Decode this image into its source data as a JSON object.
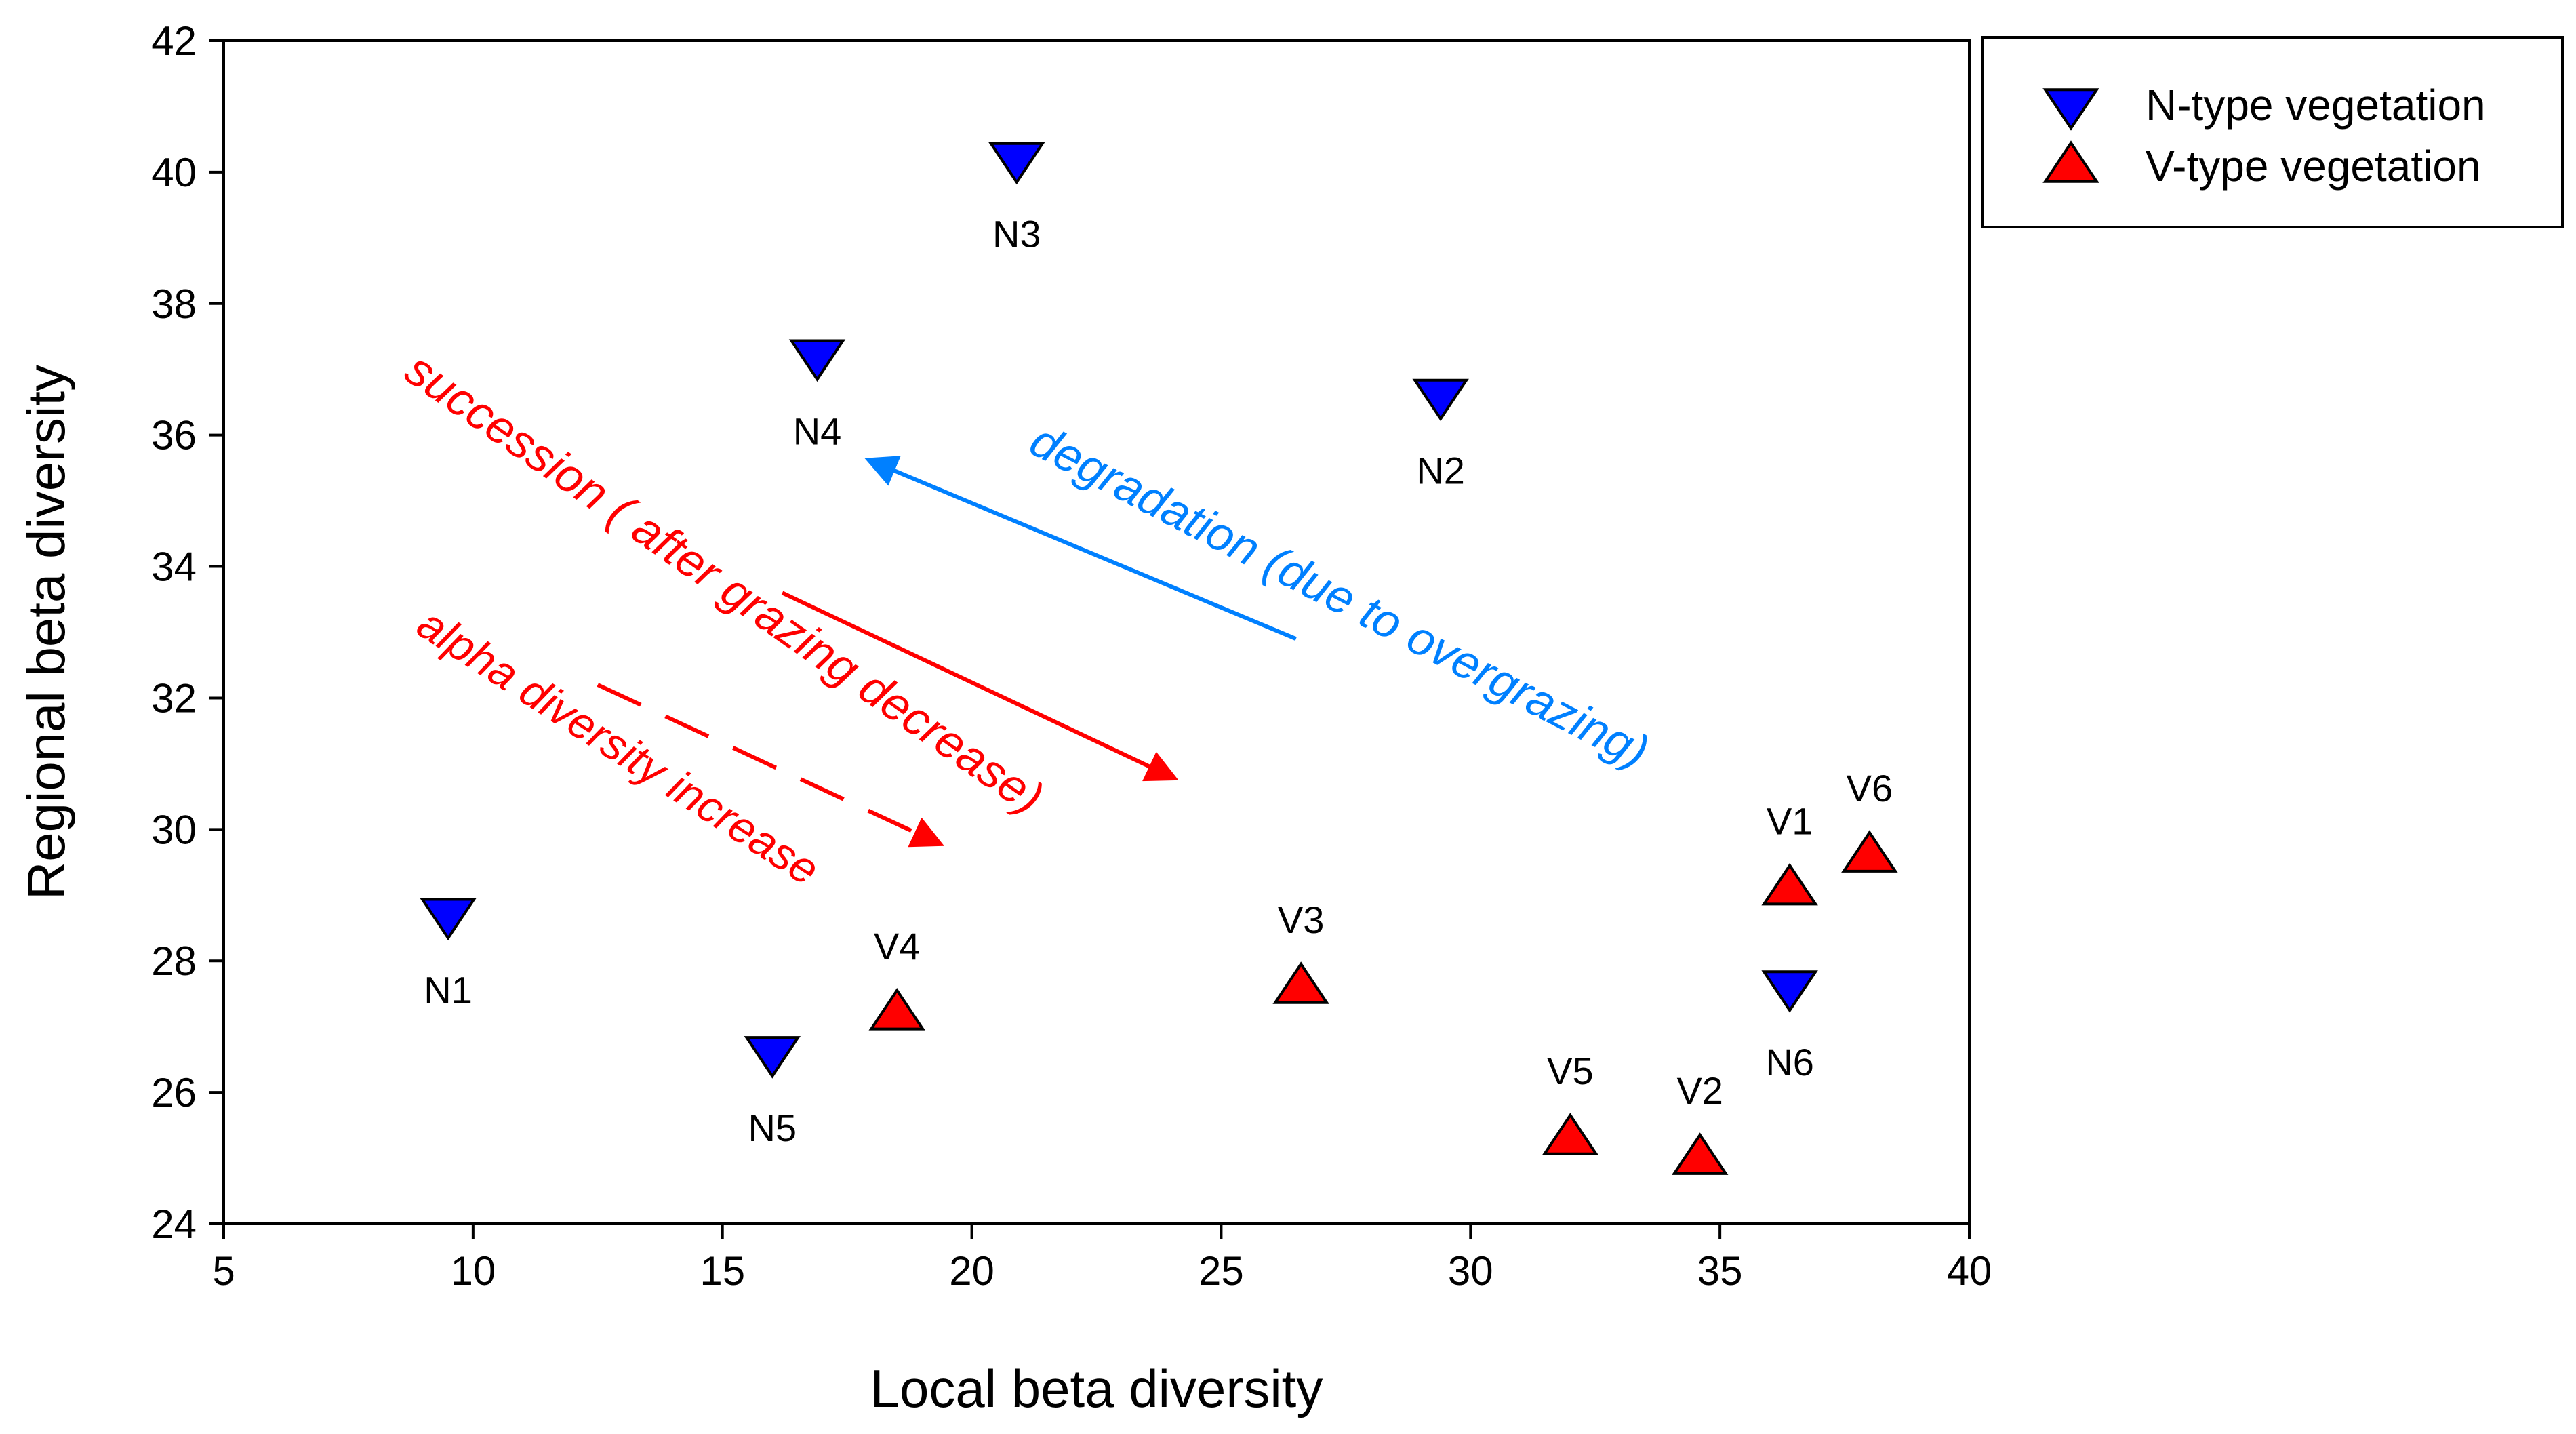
{
  "chart_data": {
    "type": "scatter",
    "xlabel": "Local beta diversity",
    "ylabel": "Regional beta diversity",
    "xlim": [
      5,
      40
    ],
    "ylim": [
      24,
      42
    ],
    "xticks": [
      "5",
      "10",
      "15",
      "20",
      "25",
      "30",
      "35",
      "40"
    ],
    "yticks": [
      "24",
      "26",
      "28",
      "30",
      "32",
      "34",
      "36",
      "38",
      "40",
      "42"
    ],
    "grid": false,
    "legend_position": "top-right outside",
    "series": [
      {
        "name": "N-type vegetation",
        "marker": "triangle-down",
        "color": "#0000ff",
        "points": [
          {
            "label": "N1",
            "x": 9.5,
            "y": 28.7
          },
          {
            "label": "N2",
            "x": 29.4,
            "y": 36.6
          },
          {
            "label": "N3",
            "x": 20.9,
            "y": 40.2
          },
          {
            "label": "N4",
            "x": 16.9,
            "y": 37.2
          },
          {
            "label": "N5",
            "x": 16.0,
            "y": 26.6
          },
          {
            "label": "N6",
            "x": 36.4,
            "y": 27.6
          }
        ]
      },
      {
        "name": "V-type vegetation",
        "marker": "triangle-up",
        "color": "#ff0000",
        "points": [
          {
            "label": "V1",
            "x": 36.4,
            "y": 29.1
          },
          {
            "label": "V2",
            "x": 34.6,
            "y": 25.0
          },
          {
            "label": "V3",
            "x": 26.6,
            "y": 27.6
          },
          {
            "label": "V4",
            "x": 18.5,
            "y": 27.2
          },
          {
            "label": "V5",
            "x": 32.0,
            "y": 25.3
          },
          {
            "label": "V6",
            "x": 38.0,
            "y": 29.6
          }
        ]
      }
    ],
    "annotations": [
      {
        "text": "degradation (due to overgrazing)",
        "color": "#0080ff",
        "arrow": {
          "from": [
            26.5,
            32.9
          ],
          "to": [
            18.0,
            35.6
          ],
          "style": "solid"
        }
      },
      {
        "text": "succession ( after grazing decrease)",
        "color": "#ff0000",
        "arrow": {
          "from": [
            16.2,
            33.6
          ],
          "to": [
            24.0,
            30.8
          ],
          "style": "solid"
        }
      },
      {
        "text": "alpha diversity increase",
        "color": "#ff0000",
        "arrow": {
          "from": [
            12.5,
            32.2
          ],
          "to": [
            19.3,
            29.8
          ],
          "style": "dashed"
        }
      }
    ]
  }
}
